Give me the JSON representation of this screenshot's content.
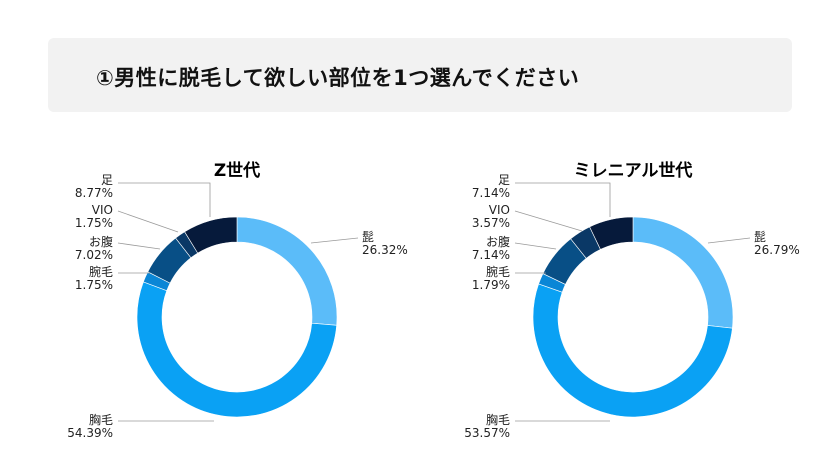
{
  "question": "①男性に脱毛して欲しい部位を1つ選んでください",
  "colors": {
    "beard": "#5bbcf9",
    "chest": "#0aa1f4",
    "arm": "#0a86d6",
    "belly": "#084f86",
    "vio": "#0a3866",
    "leg": "#061a3b"
  },
  "chart_data": [
    {
      "type": "pie",
      "title": "Z世代",
      "slices": [
        {
          "key": "beard",
          "label": "髭",
          "value": 26.32,
          "value_text": "26.32%"
        },
        {
          "key": "chest",
          "label": "胸毛",
          "value": 54.39,
          "value_text": "54.39%"
        },
        {
          "key": "arm",
          "label": "腕毛",
          "value": 1.75,
          "value_text": "1.75%"
        },
        {
          "key": "belly",
          "label": "お腹",
          "value": 7.02,
          "value_text": "7.02%"
        },
        {
          "key": "vio",
          "label": "VIO",
          "value": 1.75,
          "value_text": "1.75%"
        },
        {
          "key": "leg",
          "label": "足",
          "value": 8.77,
          "value_text": "8.77%"
        }
      ]
    },
    {
      "type": "pie",
      "title": "ミレニアル世代",
      "slices": [
        {
          "key": "beard",
          "label": "髭",
          "value": 26.79,
          "value_text": "26.79%"
        },
        {
          "key": "chest",
          "label": "胸毛",
          "value": 53.57,
          "value_text": "53.57%"
        },
        {
          "key": "arm",
          "label": "腕毛",
          "value": 1.79,
          "value_text": "1.79%"
        },
        {
          "key": "belly",
          "label": "お腹",
          "value": 7.14,
          "value_text": "7.14%"
        },
        {
          "key": "vio",
          "label": "VIO",
          "value": 3.57,
          "value_text": "3.57%"
        },
        {
          "key": "leg",
          "label": "足",
          "value": 7.14,
          "value_text": "7.14%"
        }
      ]
    }
  ]
}
